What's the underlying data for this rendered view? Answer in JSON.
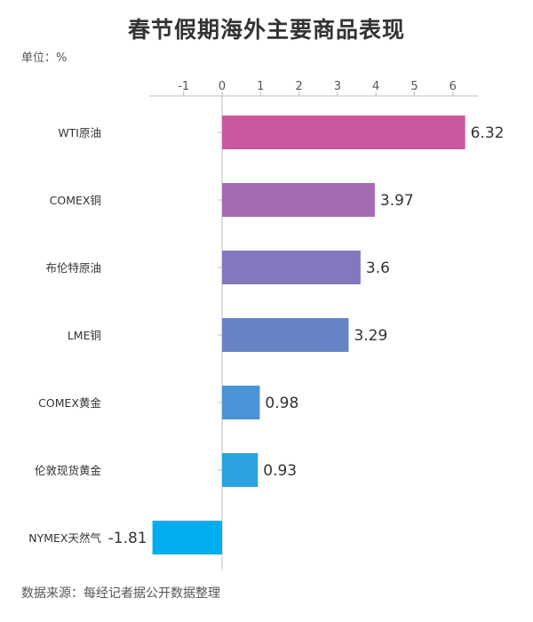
{
  "title": "春节假期海外主要商品表现",
  "unit_label": "单位：%",
  "source_label": "数据来源：每经记者据公开数据整理",
  "chart_data": {
    "type": "bar",
    "orientation": "horizontal",
    "title": "春节假期海外主要商品表现",
    "categories": [
      "WTI原油",
      "COMEX铜",
      "布伦特原油",
      "LME铜",
      "COMEX黄金",
      "伦敦现货黄金",
      "NYMEX天然气"
    ],
    "values": [
      6.32,
      3.97,
      3.6,
      3.29,
      0.98,
      0.93,
      -1.81
    ],
    "value_labels": [
      "6.32",
      "3.97",
      "3.6",
      "3.29",
      "0.98",
      "0.93",
      "-1.81"
    ],
    "colors": [
      "#c9589f",
      "#a46bb0",
      "#8577bd",
      "#6683c6",
      "#4a93d6",
      "#2ba1df",
      "#00aeef"
    ],
    "xlim": [
      -1.8,
      6.5
    ],
    "xticks": [
      -1,
      0,
      1,
      2,
      3,
      4,
      5,
      6
    ],
    "xtick_labels": [
      "-1",
      "0",
      "1",
      "2",
      "3",
      "4",
      "5",
      "6"
    ],
    "axis_position": "top",
    "grid": false,
    "legend": "none"
  }
}
